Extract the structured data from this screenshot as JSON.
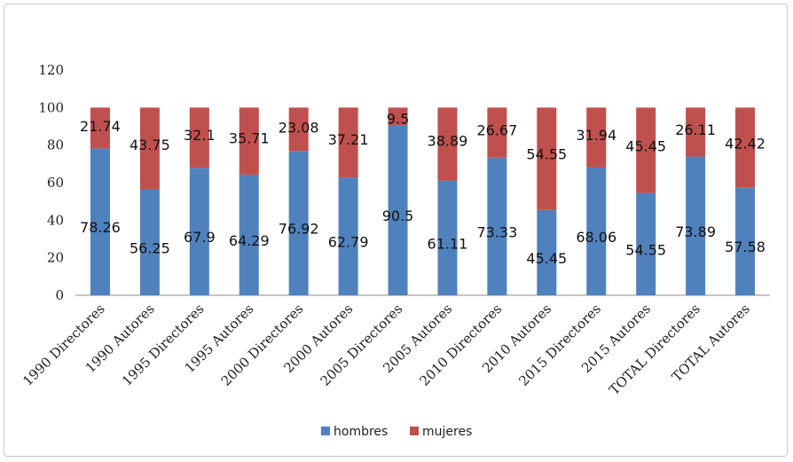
{
  "chart_data": {
    "type": "bar",
    "stacked": true,
    "categories": [
      "1990 Directores",
      "1990 Autores",
      "1995 Directores",
      "1995 Autores",
      "2000 Directores",
      "2000 Autores",
      "2005 Directores",
      "2005 Autores",
      "2010 Directores",
      "2010 Autores",
      "2015 Directores",
      "2015 Autores",
      "TOTAL Directores",
      "TOTAL Autores"
    ],
    "series": [
      {
        "name": "hombres",
        "color": "#4f81bd",
        "values": [
          78.26,
          56.25,
          67.9,
          64.29,
          76.92,
          62.79,
          90.5,
          61.11,
          73.33,
          45.45,
          68.06,
          54.55,
          73.89,
          57.58
        ]
      },
      {
        "name": "mujeres",
        "color": "#c0504d",
        "values": [
          21.74,
          43.75,
          32.1,
          35.71,
          23.08,
          37.21,
          9.5,
          38.89,
          26.67,
          54.55,
          31.94,
          45.45,
          26.11,
          42.42
        ]
      }
    ],
    "ylim": [
      0,
      120
    ],
    "yticks": [
      0,
      20,
      40,
      60,
      80,
      100,
      120
    ],
    "title": "",
    "xlabel": "",
    "ylabel": "",
    "legend_position": "bottom",
    "grid": false
  }
}
